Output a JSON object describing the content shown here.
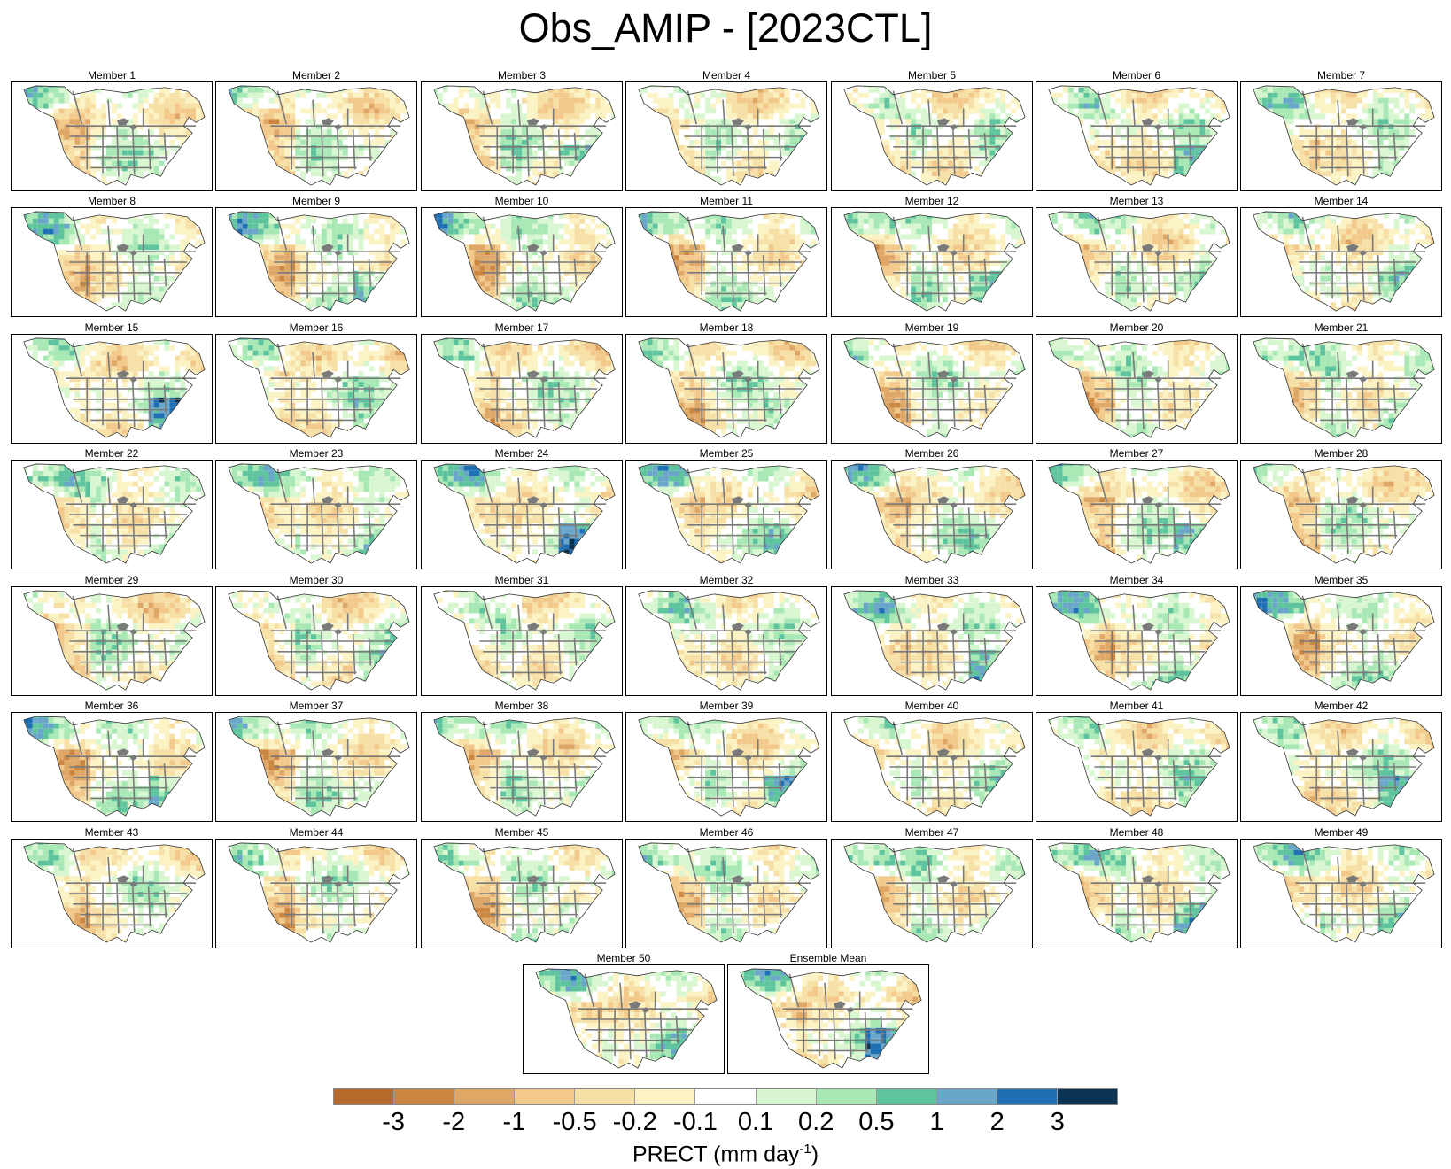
{
  "title": "Obs_AMIP - [2023CTL]",
  "panels": [
    {
      "label": "Member 1",
      "pattern": 1
    },
    {
      "label": "Member 2",
      "pattern": 2
    },
    {
      "label": "Member 3",
      "pattern": 3
    },
    {
      "label": "Member 4",
      "pattern": 4
    },
    {
      "label": "Member 5",
      "pattern": 5
    },
    {
      "label": "Member 6",
      "pattern": 6
    },
    {
      "label": "Member 7",
      "pattern": 7
    },
    {
      "label": "Member 8",
      "pattern": 8
    },
    {
      "label": "Member 9",
      "pattern": 9
    },
    {
      "label": "Member 10",
      "pattern": 10
    },
    {
      "label": "Member 11",
      "pattern": 11
    },
    {
      "label": "Member 12",
      "pattern": 12
    },
    {
      "label": "Member 13",
      "pattern": 13
    },
    {
      "label": "Member 14",
      "pattern": 14
    },
    {
      "label": "Member 15",
      "pattern": 15
    },
    {
      "label": "Member 16",
      "pattern": 16
    },
    {
      "label": "Member 17",
      "pattern": 17
    },
    {
      "label": "Member 18",
      "pattern": 18
    },
    {
      "label": "Member 19",
      "pattern": 19
    },
    {
      "label": "Member 20",
      "pattern": 20
    },
    {
      "label": "Member 21",
      "pattern": 21
    },
    {
      "label": "Member 22",
      "pattern": 22
    },
    {
      "label": "Member 23",
      "pattern": 23
    },
    {
      "label": "Member 24",
      "pattern": 24
    },
    {
      "label": "Member 25",
      "pattern": 25
    },
    {
      "label": "Member 26",
      "pattern": 26
    },
    {
      "label": "Member 27",
      "pattern": 27
    },
    {
      "label": "Member 28",
      "pattern": 28
    },
    {
      "label": "Member 29",
      "pattern": 29
    },
    {
      "label": "Member 30",
      "pattern": 30
    },
    {
      "label": "Member 31",
      "pattern": 31
    },
    {
      "label": "Member 32",
      "pattern": 32
    },
    {
      "label": "Member 33",
      "pattern": 33
    },
    {
      "label": "Member 34",
      "pattern": 34
    },
    {
      "label": "Member 35",
      "pattern": 35
    },
    {
      "label": "Member 36",
      "pattern": 36
    },
    {
      "label": "Member 37",
      "pattern": 37
    },
    {
      "label": "Member 38",
      "pattern": 38
    },
    {
      "label": "Member 39",
      "pattern": 39
    },
    {
      "label": "Member 40",
      "pattern": 40
    },
    {
      "label": "Member 41",
      "pattern": 41
    },
    {
      "label": "Member 42",
      "pattern": 42
    },
    {
      "label": "Member 43",
      "pattern": 43
    },
    {
      "label": "Member 44",
      "pattern": 44
    },
    {
      "label": "Member 45",
      "pattern": 45
    },
    {
      "label": "Member 46",
      "pattern": 46
    },
    {
      "label": "Member 47",
      "pattern": 47
    },
    {
      "label": "Member 48",
      "pattern": 48
    },
    {
      "label": "Member 49",
      "pattern": 49
    },
    {
      "label": "Member 50",
      "pattern": 50
    },
    {
      "label": "Ensemble Mean",
      "pattern": 51
    }
  ],
  "colorbar": {
    "colors": [
      "#b5692a",
      "#cb8640",
      "#dfa766",
      "#f2c98a",
      "#f7e0a6",
      "#fbf3c4",
      "#ffffff",
      "#d8f7d0",
      "#a8e8b4",
      "#5ec49e",
      "#6aa6c9",
      "#1f6fb5",
      "#0c3352"
    ],
    "ticks": [
      "-3",
      "-2",
      "-1",
      "-0.5",
      "-0.2",
      "-0.1",
      "0.1",
      "0.2",
      "0.5",
      "1",
      "2",
      "3"
    ],
    "label_main": "PRECT (mm day",
    "label_exp": "-1",
    "label_close": ")"
  }
}
